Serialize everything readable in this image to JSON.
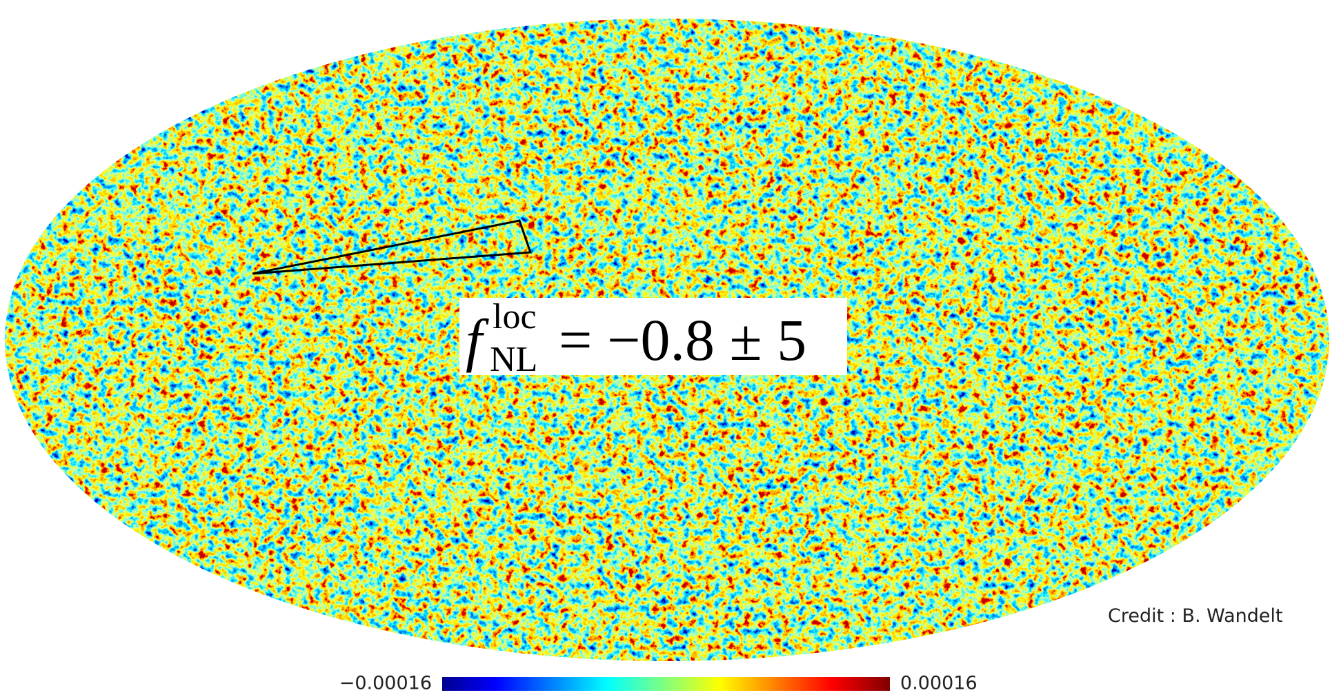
{
  "formula": {
    "symbol": "f",
    "superscript": "loc",
    "subscript": "NL",
    "rhs": "= −0.8 ± 5"
  },
  "credit": "Credit : B. Wandelt",
  "colorbar": {
    "min_label": "−0.00016",
    "max_label": "0.00016"
  }
}
